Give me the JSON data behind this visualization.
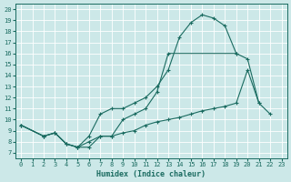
{
  "xlabel": "Humidex (Indice chaleur)",
  "bg_color": "#cce8e8",
  "grid_color": "#ffffff",
  "line_color": "#1a6b60",
  "xlim": [
    -0.5,
    23.5
  ],
  "ylim": [
    6.5,
    20.5
  ],
  "xticks": [
    0,
    1,
    2,
    3,
    4,
    5,
    6,
    7,
    8,
    9,
    10,
    11,
    12,
    13,
    14,
    15,
    16,
    17,
    18,
    19,
    20,
    21,
    22,
    23
  ],
  "yticks": [
    7,
    8,
    9,
    10,
    11,
    12,
    13,
    14,
    15,
    16,
    17,
    18,
    19,
    20
  ],
  "line_top_x": [
    0,
    2,
    3,
    4,
    5,
    6,
    7,
    8,
    9,
    10,
    11,
    12,
    13,
    14,
    15,
    16,
    17,
    18,
    19
  ],
  "line_top_y": [
    9.5,
    8.5,
    8.8,
    7.8,
    7.5,
    8.5,
    10.5,
    11.0,
    11.0,
    11.5,
    12.0,
    13.0,
    14.5,
    17.5,
    18.8,
    19.5,
    19.2,
    18.5,
    16.0
  ],
  "line_mid_x": [
    0,
    2,
    3,
    4,
    5,
    6,
    7,
    8,
    9,
    10,
    11,
    12,
    13,
    19,
    20,
    21
  ],
  "line_mid_y": [
    9.5,
    8.5,
    8.8,
    7.8,
    7.5,
    7.5,
    8.5,
    8.5,
    10.0,
    10.5,
    11.0,
    12.5,
    16.0,
    16.0,
    15.5,
    11.5
  ],
  "line_bot_x": [
    0,
    2,
    3,
    4,
    5,
    6,
    7,
    8,
    9,
    10,
    11,
    12,
    13,
    14,
    15,
    16,
    17,
    18,
    19,
    20,
    21,
    22
  ],
  "line_bot_y": [
    9.5,
    8.5,
    8.8,
    7.8,
    7.5,
    8.0,
    8.5,
    8.5,
    8.8,
    9.0,
    9.5,
    9.8,
    10.0,
    10.2,
    10.5,
    10.8,
    11.0,
    11.2,
    11.5,
    14.5,
    11.5,
    10.5
  ]
}
